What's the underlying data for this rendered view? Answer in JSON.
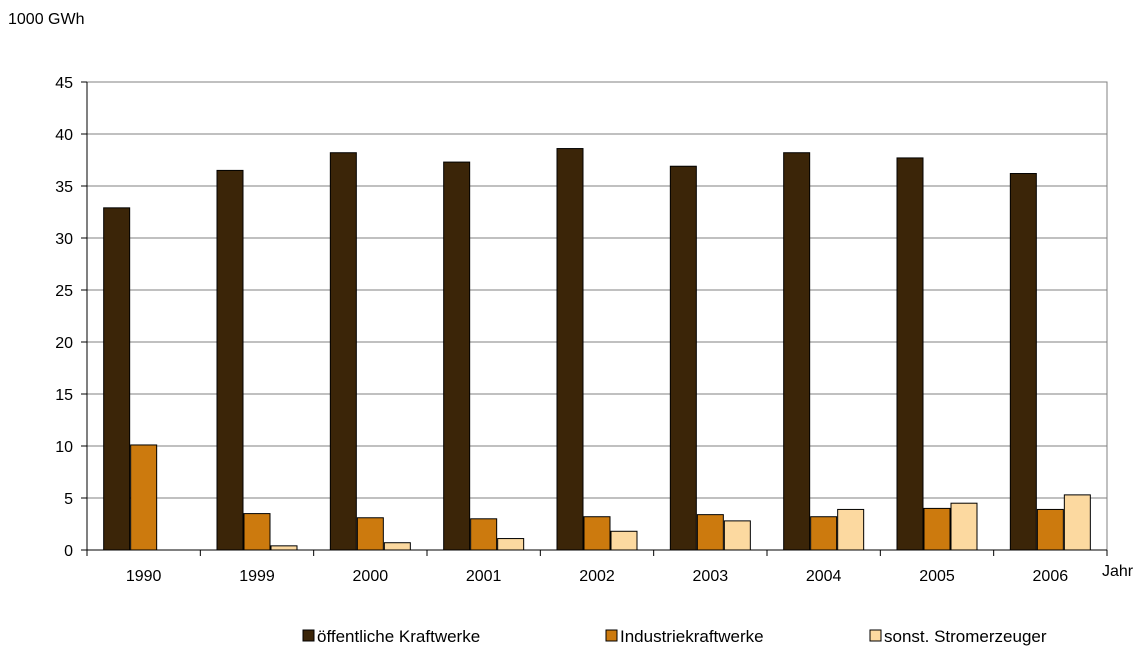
{
  "chart_data": {
    "type": "bar",
    "ylabel": "1000 GWh",
    "xlabel": "Jahr",
    "ylim": [
      0,
      45
    ],
    "yticks": [
      0,
      5,
      10,
      15,
      20,
      25,
      30,
      35,
      40,
      45
    ],
    "grid": true,
    "legend_position": "bottom",
    "categories": [
      "1990",
      "1999",
      "2000",
      "2001",
      "2002",
      "2003",
      "2004",
      "2005",
      "2006"
    ],
    "series": [
      {
        "name": "öffentliche Kraftwerke",
        "color": "#3b2508",
        "values": [
          32.9,
          36.5,
          38.2,
          37.3,
          38.6,
          36.9,
          38.2,
          37.7,
          36.2
        ]
      },
      {
        "name": "Industriekraftwerke",
        "color": "#cc7a0e",
        "values": [
          10.1,
          3.5,
          3.1,
          3.0,
          3.2,
          3.4,
          3.2,
          4.0,
          3.9
        ]
      },
      {
        "name": "sonst. Stromerzeuger",
        "color": "#fcd9a0",
        "values": [
          0,
          0.4,
          0.7,
          1.1,
          1.8,
          2.8,
          3.9,
          4.5,
          5.3
        ]
      }
    ]
  }
}
